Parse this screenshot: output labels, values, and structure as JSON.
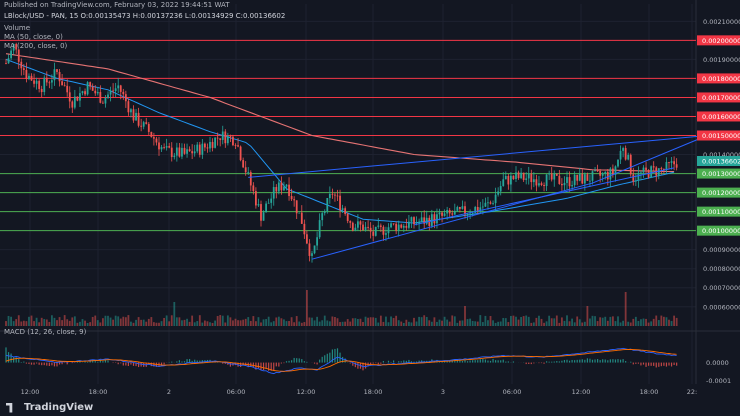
{
  "header": {
    "published": "Published on TradingView.com, February 03, 2022 19:44:51 WAT",
    "symbol_line": "LBlock/USD - PAN, 15  O:0.00135473 H:0.00137236 L:0.00134929 C:0.00136602",
    "volume_label": "Volume",
    "ma50_label": "MA (50, close, 0)",
    "ma200_label": "MA (200, close, 0)",
    "macd_label": "MACD (12, 26, close, 9)"
  },
  "branding": {
    "logo_text": "TradingView",
    "logo_icon": "tradingview-logo-icon"
  },
  "colors": {
    "background": "#131722",
    "bull": "#26a69a",
    "bear": "#ef5350",
    "ma50": "#2196f3",
    "ma200": "#e57373",
    "resistance": "#f23645",
    "support": "#4caf50",
    "trendline": "#2962ff",
    "macd_line": "#2962ff",
    "signal_line": "#ff6d00",
    "last_price": "#26a69a"
  },
  "chart_data": {
    "type": "candlestick",
    "y_axis": {
      "range": [
        0.00052,
        0.00217
      ],
      "ticks": [
        "0.00210000",
        "0.00190000",
        "0.00140000",
        "0.00090000",
        "0.00080000",
        "0.00070000",
        "0.00060000"
      ]
    },
    "x_axis": {
      "ticks": [
        "12:00",
        "18:00",
        "2",
        "06:00",
        "12:00",
        "18:00",
        "3",
        "06:00",
        "12:00",
        "18:00",
        "22:"
      ]
    },
    "price_labels": {
      "resistance": [
        "0.00200000",
        "0.00180000",
        "0.00170000",
        "0.00160000",
        "0.00150000"
      ],
      "support": [
        "0.00130000",
        "0.00120000",
        "0.00110000",
        "0.00100000"
      ],
      "last_price": "0.00136602"
    },
    "resistance_levels": [
      0.002,
      0.0018,
      0.0017,
      0.0016,
      0.0015
    ],
    "support_levels": [
      0.0013,
      0.0012,
      0.0011,
      0.001
    ],
    "price_anchors": [
      [
        0,
        0.00188
      ],
      [
        3,
        0.00197
      ],
      [
        8,
        0.00182
      ],
      [
        14,
        0.00176
      ],
      [
        20,
        0.00183
      ],
      [
        26,
        0.00168
      ],
      [
        32,
        0.00176
      ],
      [
        38,
        0.00169
      ],
      [
        44,
        0.00176
      ],
      [
        50,
        0.0016
      ],
      [
        56,
        0.00152
      ],
      [
        62,
        0.00142
      ],
      [
        70,
        0.0014
      ],
      [
        78,
        0.00144
      ],
      [
        84,
        0.0015
      ],
      [
        90,
        0.00148
      ],
      [
        95,
        0.00128
      ],
      [
        100,
        0.00108
      ],
      [
        106,
        0.00122
      ],
      [
        110,
        0.00125
      ],
      [
        116,
        0.00105
      ],
      [
        120,
        0.00085
      ],
      [
        124,
        0.00108
      ],
      [
        128,
        0.0012
      ],
      [
        132,
        0.00112
      ],
      [
        136,
        0.00103
      ],
      [
        140,
        0.00102
      ],
      [
        144,
        0.00098
      ],
      [
        150,
        0.00102
      ],
      [
        160,
        0.00104
      ],
      [
        170,
        0.00107
      ],
      [
        180,
        0.0011
      ],
      [
        190,
        0.00114
      ],
      [
        195,
        0.00126
      ],
      [
        200,
        0.00128
      ],
      [
        210,
        0.00127
      ],
      [
        220,
        0.00126
      ],
      [
        230,
        0.00128
      ],
      [
        238,
        0.0013
      ],
      [
        242,
        0.00145
      ],
      [
        246,
        0.00128
      ],
      [
        252,
        0.00131
      ],
      [
        258,
        0.00132
      ],
      [
        263,
        0.00136
      ]
    ],
    "ma50_anchors": [
      [
        0,
        0.0019
      ],
      [
        20,
        0.0018
      ],
      [
        40,
        0.00174
      ],
      [
        60,
        0.00162
      ],
      [
        80,
        0.00152
      ],
      [
        95,
        0.00146
      ],
      [
        110,
        0.00122
      ],
      [
        125,
        0.00114
      ],
      [
        140,
        0.00106
      ],
      [
        160,
        0.00104
      ],
      [
        190,
        0.0011
      ],
      [
        220,
        0.00117
      ],
      [
        240,
        0.00124
      ],
      [
        263,
        0.00131
      ]
    ],
    "ma200_anchors": [
      [
        0,
        0.00193
      ],
      [
        40,
        0.00185
      ],
      [
        80,
        0.0017
      ],
      [
        120,
        0.0015
      ],
      [
        160,
        0.0014
      ],
      [
        200,
        0.00136
      ],
      [
        230,
        0.00132
      ],
      [
        263,
        0.00131
      ]
    ],
    "trendlines": [
      {
        "from": [
          95,
          0.00128
        ],
        "to": [
          275,
          0.0015
        ]
      },
      {
        "from": [
          120,
          0.00085
        ],
        "to": [
          230,
          0.00125
        ]
      },
      {
        "from": [
          230,
          0.00125
        ],
        "to": [
          275,
          0.0015
        ]
      },
      {
        "from": [
          160,
          0.00103
        ],
        "to": [
          262,
          0.00133
        ]
      }
    ],
    "volume_spikes": [
      [
        118,
        0.9
      ],
      [
        243,
        0.85
      ],
      [
        66,
        0.6
      ],
      [
        180,
        0.5
      ],
      [
        228,
        0.5
      ]
    ],
    "macd": {
      "range": [
        -0.00012,
        0.00016
      ],
      "ticks": [
        "0.0000",
        "-0.0001"
      ],
      "anchors": [
        [
          0,
          4e-05
        ],
        [
          20,
          0.0
        ],
        [
          40,
          2e-05
        ],
        [
          60,
          -2e-05
        ],
        [
          80,
          1e-05
        ],
        [
          95,
          -2e-05
        ],
        [
          105,
          -6e-05
        ],
        [
          115,
          -3e-05
        ],
        [
          122,
          -4e-05
        ],
        [
          130,
          3e-05
        ],
        [
          140,
          -2e-05
        ],
        [
          160,
          0.0
        ],
        [
          180,
          2e-05
        ],
        [
          195,
          4e-05
        ],
        [
          210,
          3e-05
        ],
        [
          230,
          6e-05
        ],
        [
          242,
          8e-05
        ],
        [
          255,
          5e-05
        ],
        [
          263,
          4e-05
        ]
      ]
    }
  }
}
